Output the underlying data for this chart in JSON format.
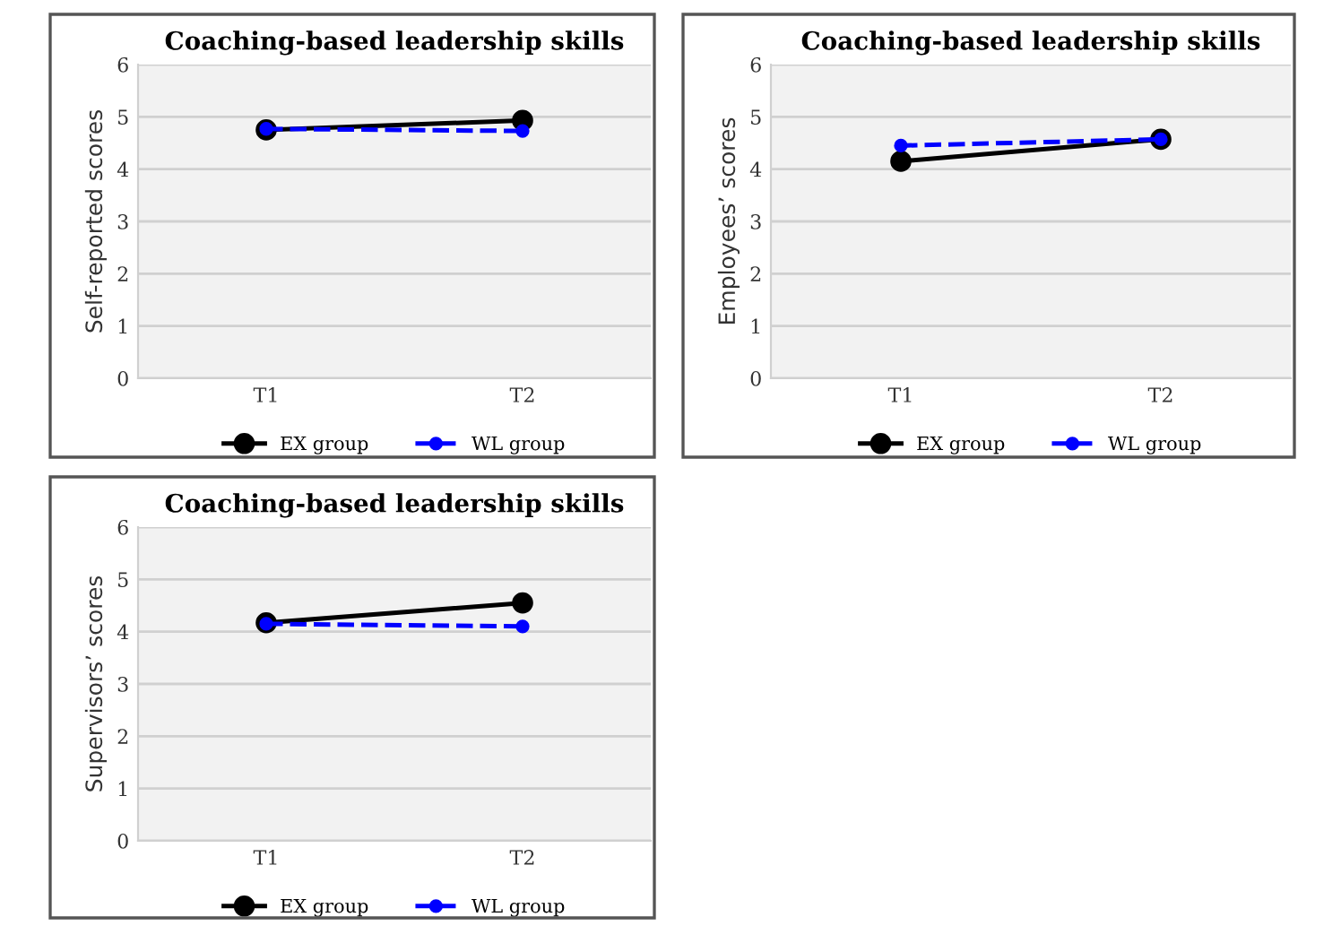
{
  "chart_data": [
    {
      "type": "line",
      "title": "Coaching-based leadership skills",
      "ylabel": "Self-reported scores",
      "categories": [
        "T1",
        "T2"
      ],
      "ylim": [
        0,
        6
      ],
      "yticks": [
        0,
        1,
        2,
        3,
        4,
        5,
        6
      ],
      "grid": "y",
      "legend": "bottom",
      "marker": "circle",
      "series": [
        {
          "name": "EX group",
          "color": "#000000",
          "line_style": "solid",
          "values": [
            4.75,
            4.93
          ]
        },
        {
          "name": "WL group",
          "color": "#0000ff",
          "line_style": "dashed",
          "values": [
            4.77,
            4.73
          ]
        }
      ]
    },
    {
      "type": "line",
      "title": "Coaching-based leadership skills",
      "ylabel": "Employees’ scores",
      "categories": [
        "T1",
        "T2"
      ],
      "ylim": [
        0,
        6
      ],
      "yticks": [
        0,
        1,
        2,
        3,
        4,
        5,
        6
      ],
      "grid": "y",
      "legend": "bottom",
      "marker": "circle",
      "series": [
        {
          "name": "EX group",
          "color": "#000000",
          "line_style": "solid",
          "values": [
            4.15,
            4.57
          ]
        },
        {
          "name": "WL group",
          "color": "#0000ff",
          "line_style": "dashed",
          "values": [
            4.45,
            4.57
          ]
        }
      ]
    },
    {
      "type": "line",
      "title": "Coaching-based leadership skills",
      "ylabel": "Supervisors’ scores",
      "categories": [
        "T1",
        "T2"
      ],
      "ylim": [
        0,
        6
      ],
      "yticks": [
        0,
        1,
        2,
        3,
        4,
        5,
        6
      ],
      "grid": "y",
      "legend": "bottom",
      "marker": "circle",
      "series": [
        {
          "name": "EX group",
          "color": "#000000",
          "line_style": "solid",
          "values": [
            4.17,
            4.55
          ]
        },
        {
          "name": "WL group",
          "color": "#0000ff",
          "line_style": "dashed",
          "values": [
            4.15,
            4.1
          ]
        }
      ]
    }
  ]
}
